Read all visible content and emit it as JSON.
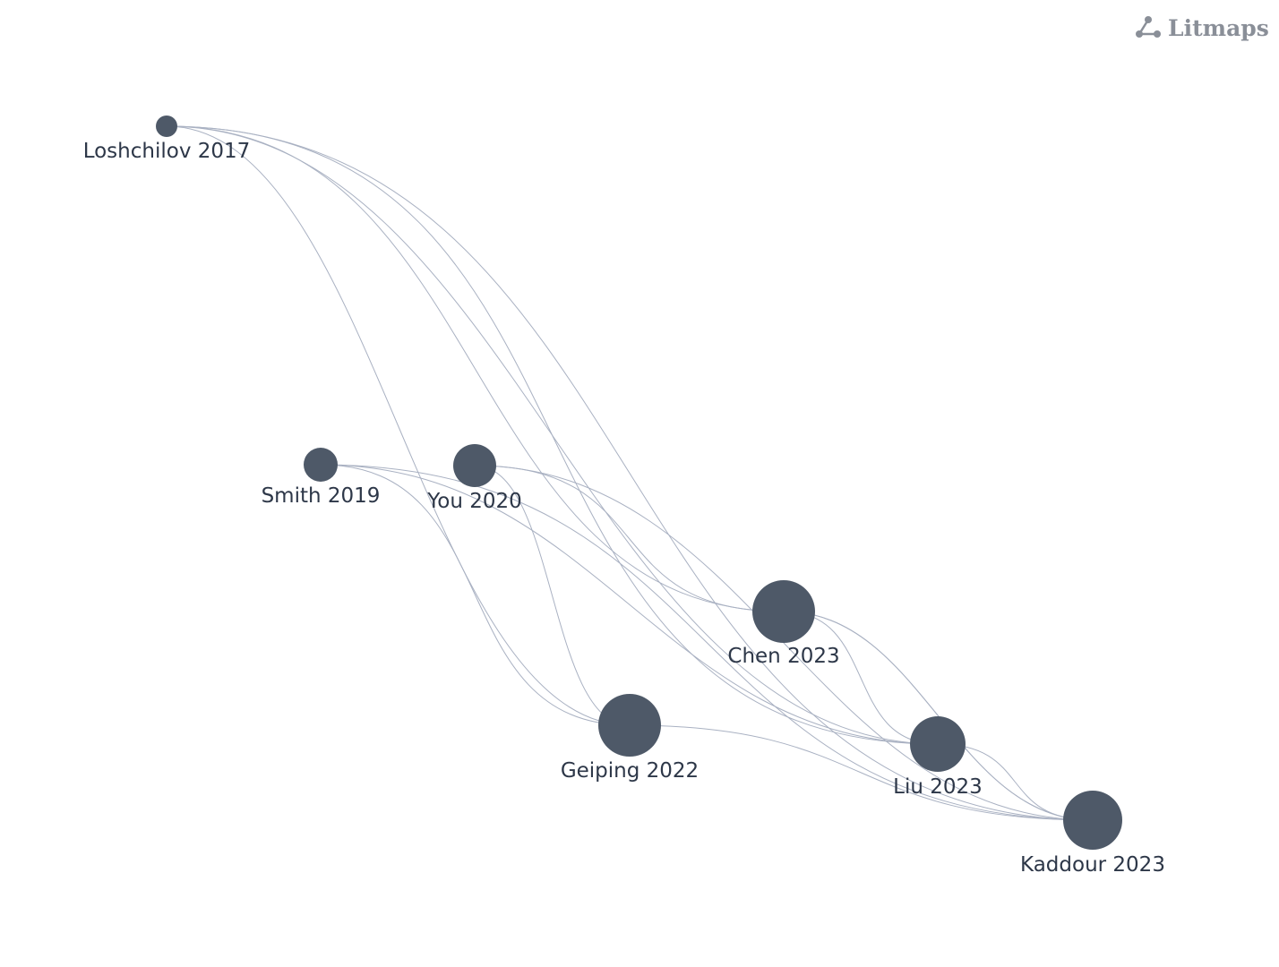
{
  "brand": "Litmaps",
  "nodes": [
    {
      "label": "Loshchilov 2017"
    },
    {
      "label": "Smith 2019"
    },
    {
      "label": "You 2020"
    },
    {
      "label": "Geiping 2022"
    },
    {
      "label": "Chen 2023"
    },
    {
      "label": "Liu 2023"
    },
    {
      "label": "Kaddour 2023"
    }
  ]
}
